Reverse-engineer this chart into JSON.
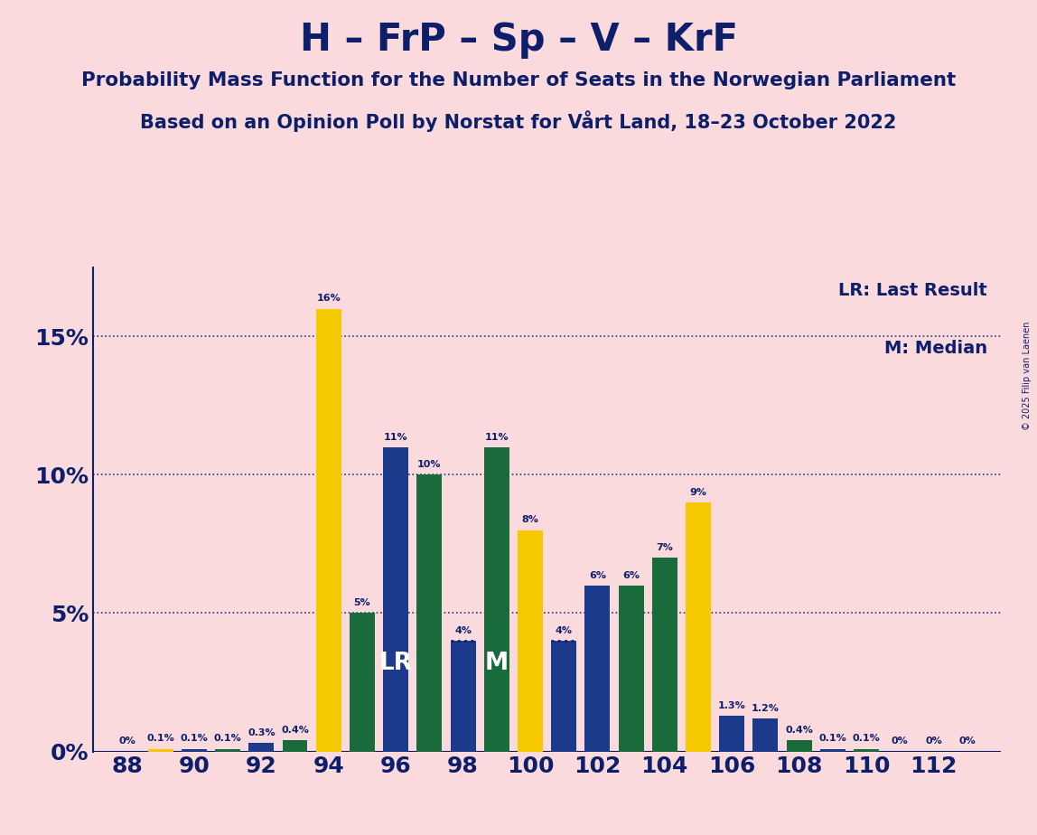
{
  "title": "H – FrP – Sp – V – KrF",
  "subtitle1": "Probability Mass Function for the Number of Seats in the Norwegian Parliament",
  "subtitle2": "Based on an Opinion Poll by Norstat for Vårt Land, 18–23 October 2022",
  "copyright": "© 2025 Filip van Laenen",
  "lr_label": "LR: Last Result",
  "m_label": "M: Median",
  "background_color": "#FADADD",
  "bar_color_yellow": "#F5C800",
  "bar_color_blue": "#1B3A8C",
  "bar_color_green": "#1A6B3C",
  "text_color": "#0D1F6B",
  "grid_color": "#1B3A8C",
  "bars": [
    {
      "seat": 88,
      "color": "yellow",
      "prob": 0.0,
      "label": "0%",
      "lr": false,
      "m": false,
      "dotted": false
    },
    {
      "seat": 89,
      "color": "yellow",
      "prob": 0.001,
      "label": "0.1%",
      "lr": false,
      "m": false,
      "dotted": false
    },
    {
      "seat": 90,
      "color": "blue",
      "prob": 0.001,
      "label": "0.1%",
      "lr": false,
      "m": false,
      "dotted": false
    },
    {
      "seat": 91,
      "color": "green",
      "prob": 0.001,
      "label": "0.1%",
      "lr": false,
      "m": false,
      "dotted": false
    },
    {
      "seat": 92,
      "color": "blue",
      "prob": 0.003,
      "label": "0.3%",
      "lr": false,
      "m": false,
      "dotted": false
    },
    {
      "seat": 93,
      "color": "green",
      "prob": 0.004,
      "label": "0.4%",
      "lr": false,
      "m": false,
      "dotted": false
    },
    {
      "seat": 94,
      "color": "yellow",
      "prob": 0.16,
      "label": "16%",
      "lr": false,
      "m": false,
      "dotted": false
    },
    {
      "seat": 95,
      "color": "green",
      "prob": 0.05,
      "label": "5%",
      "lr": false,
      "m": false,
      "dotted": false
    },
    {
      "seat": 96,
      "color": "blue",
      "prob": 0.11,
      "label": "11%",
      "lr": true,
      "m": false,
      "dotted": false
    },
    {
      "seat": 97,
      "color": "green",
      "prob": 0.1,
      "label": "10%",
      "lr": false,
      "m": false,
      "dotted": false
    },
    {
      "seat": 98,
      "color": "blue",
      "prob": 0.04,
      "label": "4%",
      "lr": false,
      "m": false,
      "dotted": true
    },
    {
      "seat": 99,
      "color": "green",
      "prob": 0.11,
      "label": "11%",
      "lr": false,
      "m": true,
      "dotted": false
    },
    {
      "seat": 100,
      "color": "yellow",
      "prob": 0.08,
      "label": "8%",
      "lr": false,
      "m": false,
      "dotted": false
    },
    {
      "seat": 101,
      "color": "blue",
      "prob": 0.04,
      "label": "4%",
      "lr": false,
      "m": false,
      "dotted": true
    },
    {
      "seat": 102,
      "color": "blue",
      "prob": 0.06,
      "label": "6%",
      "lr": false,
      "m": false,
      "dotted": false
    },
    {
      "seat": 103,
      "color": "green",
      "prob": 0.06,
      "label": "6%",
      "lr": false,
      "m": false,
      "dotted": false
    },
    {
      "seat": 104,
      "color": "green",
      "prob": 0.07,
      "label": "7%",
      "lr": false,
      "m": false,
      "dotted": false
    },
    {
      "seat": 105,
      "color": "yellow",
      "prob": 0.09,
      "label": "9%",
      "lr": false,
      "m": false,
      "dotted": false
    },
    {
      "seat": 106,
      "color": "blue",
      "prob": 0.013,
      "label": "1.3%",
      "lr": false,
      "m": false,
      "dotted": false
    },
    {
      "seat": 107,
      "color": "blue",
      "prob": 0.012,
      "label": "1.2%",
      "lr": false,
      "m": false,
      "dotted": false
    },
    {
      "seat": 108,
      "color": "green",
      "prob": 0.004,
      "label": "0.4%",
      "lr": false,
      "m": false,
      "dotted": false
    },
    {
      "seat": 109,
      "color": "blue",
      "prob": 0.001,
      "label": "0.1%",
      "lr": false,
      "m": false,
      "dotted": false
    },
    {
      "seat": 110,
      "color": "green",
      "prob": 0.001,
      "label": "0.1%",
      "lr": false,
      "m": false,
      "dotted": false
    },
    {
      "seat": 111,
      "color": "blue",
      "prob": 0.0,
      "label": "0%",
      "lr": false,
      "m": false,
      "dotted": false
    },
    {
      "seat": 112,
      "color": "blue",
      "prob": 0.0,
      "label": "0%",
      "lr": false,
      "m": false,
      "dotted": false
    },
    {
      "seat": 113,
      "color": "blue",
      "prob": 0.0,
      "label": "0%",
      "lr": false,
      "m": false,
      "dotted": false
    }
  ],
  "ylim": [
    0,
    0.175
  ],
  "yticks": [
    0.0,
    0.05,
    0.1,
    0.15
  ],
  "ytick_labels": [
    "0%",
    "5%",
    "10%",
    "15%"
  ],
  "xticks": [
    88,
    90,
    92,
    94,
    96,
    98,
    100,
    102,
    104,
    106,
    108,
    110,
    112
  ]
}
